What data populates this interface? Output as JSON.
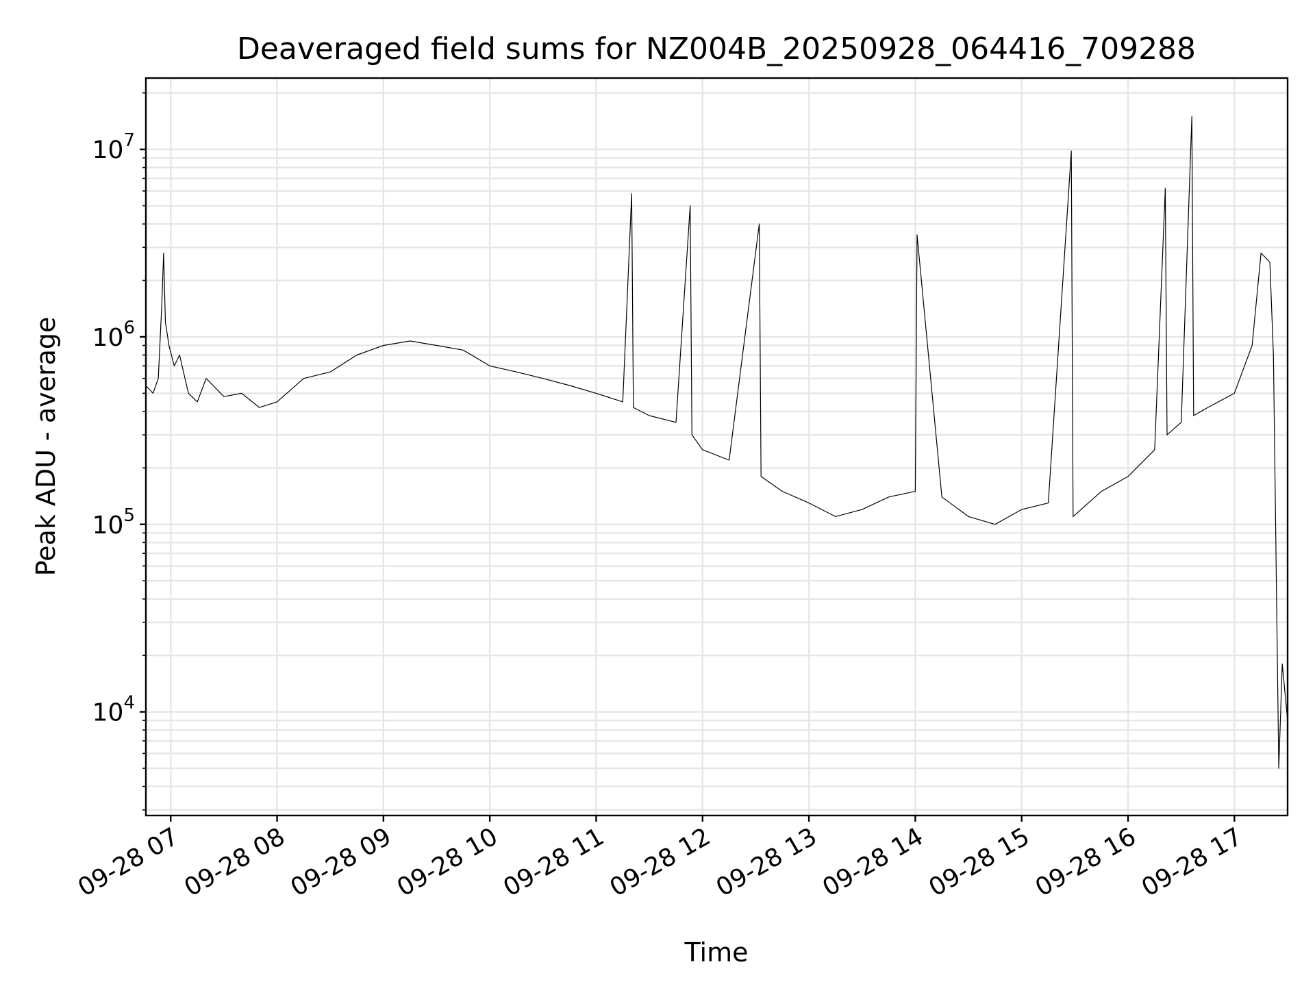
{
  "chart_data": {
    "type": "line",
    "title": "Deaveraged field sums for NZ004B_20250928_064416_709288",
    "xlabel": "Time",
    "ylabel": "Peak ADU - average",
    "yscale": "log",
    "grid": true,
    "grid_which": "both",
    "xlim": [
      "2025-09-28 06:46",
      "2025-09-28 17:30"
    ],
    "ylim": [
      2800,
      24000000
    ],
    "x_ticks": [
      "2025-09-28 07:00",
      "2025-09-28 08:00",
      "2025-09-28 09:00",
      "2025-09-28 10:00",
      "2025-09-28 11:00",
      "2025-09-28 12:00",
      "2025-09-28 13:00",
      "2025-09-28 14:00",
      "2025-09-28 15:00",
      "2025-09-28 16:00",
      "2025-09-28 17:00"
    ],
    "x_tick_labels": [
      "09-28 07",
      "09-28 08",
      "09-28 09",
      "09-28 10",
      "09-28 11",
      "09-28 12",
      "09-28 13",
      "09-28 14",
      "09-28 15",
      "09-28 16",
      "09-28 17"
    ],
    "y_ticks": [
      {
        "value": 10000,
        "base": "10",
        "exp": "4"
      },
      {
        "value": 100000,
        "base": "10",
        "exp": "5"
      },
      {
        "value": 1000000,
        "base": "10",
        "exp": "6"
      },
      {
        "value": 10000000,
        "base": "10",
        "exp": "7"
      }
    ],
    "series": [
      {
        "color": "#000000",
        "x": [
          "2025-09-28 06:46",
          "2025-09-28 06:50",
          "2025-09-28 06:53",
          "2025-09-28 06:55",
          "2025-09-28 06:56",
          "2025-09-28 06:57",
          "2025-09-28 06:59",
          "2025-09-28 07:02",
          "2025-09-28 07:05",
          "2025-09-28 07:10",
          "2025-09-28 07:15",
          "2025-09-28 07:20",
          "2025-09-28 07:30",
          "2025-09-28 07:40",
          "2025-09-28 07:50",
          "2025-09-28 08:00",
          "2025-09-28 08:15",
          "2025-09-28 08:30",
          "2025-09-28 08:45",
          "2025-09-28 09:00",
          "2025-09-28 09:15",
          "2025-09-28 09:30",
          "2025-09-28 09:45",
          "2025-09-28 10:00",
          "2025-09-28 10:15",
          "2025-09-28 10:30",
          "2025-09-28 10:45",
          "2025-09-28 11:00",
          "2025-09-28 11:15",
          "2025-09-28 11:20",
          "2025-09-28 11:21",
          "2025-09-28 11:30",
          "2025-09-28 11:45",
          "2025-09-28 11:53",
          "2025-09-28 11:54",
          "2025-09-28 12:00",
          "2025-09-28 12:15",
          "2025-09-28 12:32",
          "2025-09-28 12:33",
          "2025-09-28 12:45",
          "2025-09-28 13:00",
          "2025-09-28 13:15",
          "2025-09-28 13:30",
          "2025-09-28 13:45",
          "2025-09-28 14:00",
          "2025-09-28 14:01",
          "2025-09-28 14:15",
          "2025-09-28 14:30",
          "2025-09-28 14:45",
          "2025-09-28 15:00",
          "2025-09-28 15:15",
          "2025-09-28 15:28",
          "2025-09-28 15:29",
          "2025-09-28 15:45",
          "2025-09-28 16:00",
          "2025-09-28 16:15",
          "2025-09-28 16:21",
          "2025-09-28 16:22",
          "2025-09-28 16:30",
          "2025-09-28 16:36",
          "2025-09-28 16:37",
          "2025-09-28 16:45",
          "2025-09-28 17:00",
          "2025-09-28 17:10",
          "2025-09-28 17:15",
          "2025-09-28 17:20",
          "2025-09-28 17:22",
          "2025-09-28 17:25",
          "2025-09-28 17:27",
          "2025-09-28 17:30"
        ],
        "y": [
          550000,
          500000,
          600000,
          1500000,
          2800000,
          1200000,
          900000,
          700000,
          800000,
          500000,
          450000,
          600000,
          480000,
          500000,
          420000,
          450000,
          600000,
          650000,
          800000,
          900000,
          950000,
          900000,
          850000,
          700000,
          650000,
          600000,
          550000,
          500000,
          450000,
          5800000,
          420000,
          380000,
          350000,
          5000000,
          300000,
          250000,
          220000,
          4000000,
          180000,
          150000,
          130000,
          110000,
          120000,
          140000,
          150000,
          3500000,
          140000,
          110000,
          100000,
          120000,
          130000,
          9800000,
          110000,
          150000,
          180000,
          250000,
          6200000,
          300000,
          350000,
          15000000,
          380000,
          420000,
          500000,
          900000,
          2800000,
          2500000,
          800000,
          5000,
          18000,
          9000
        ]
      }
    ]
  }
}
